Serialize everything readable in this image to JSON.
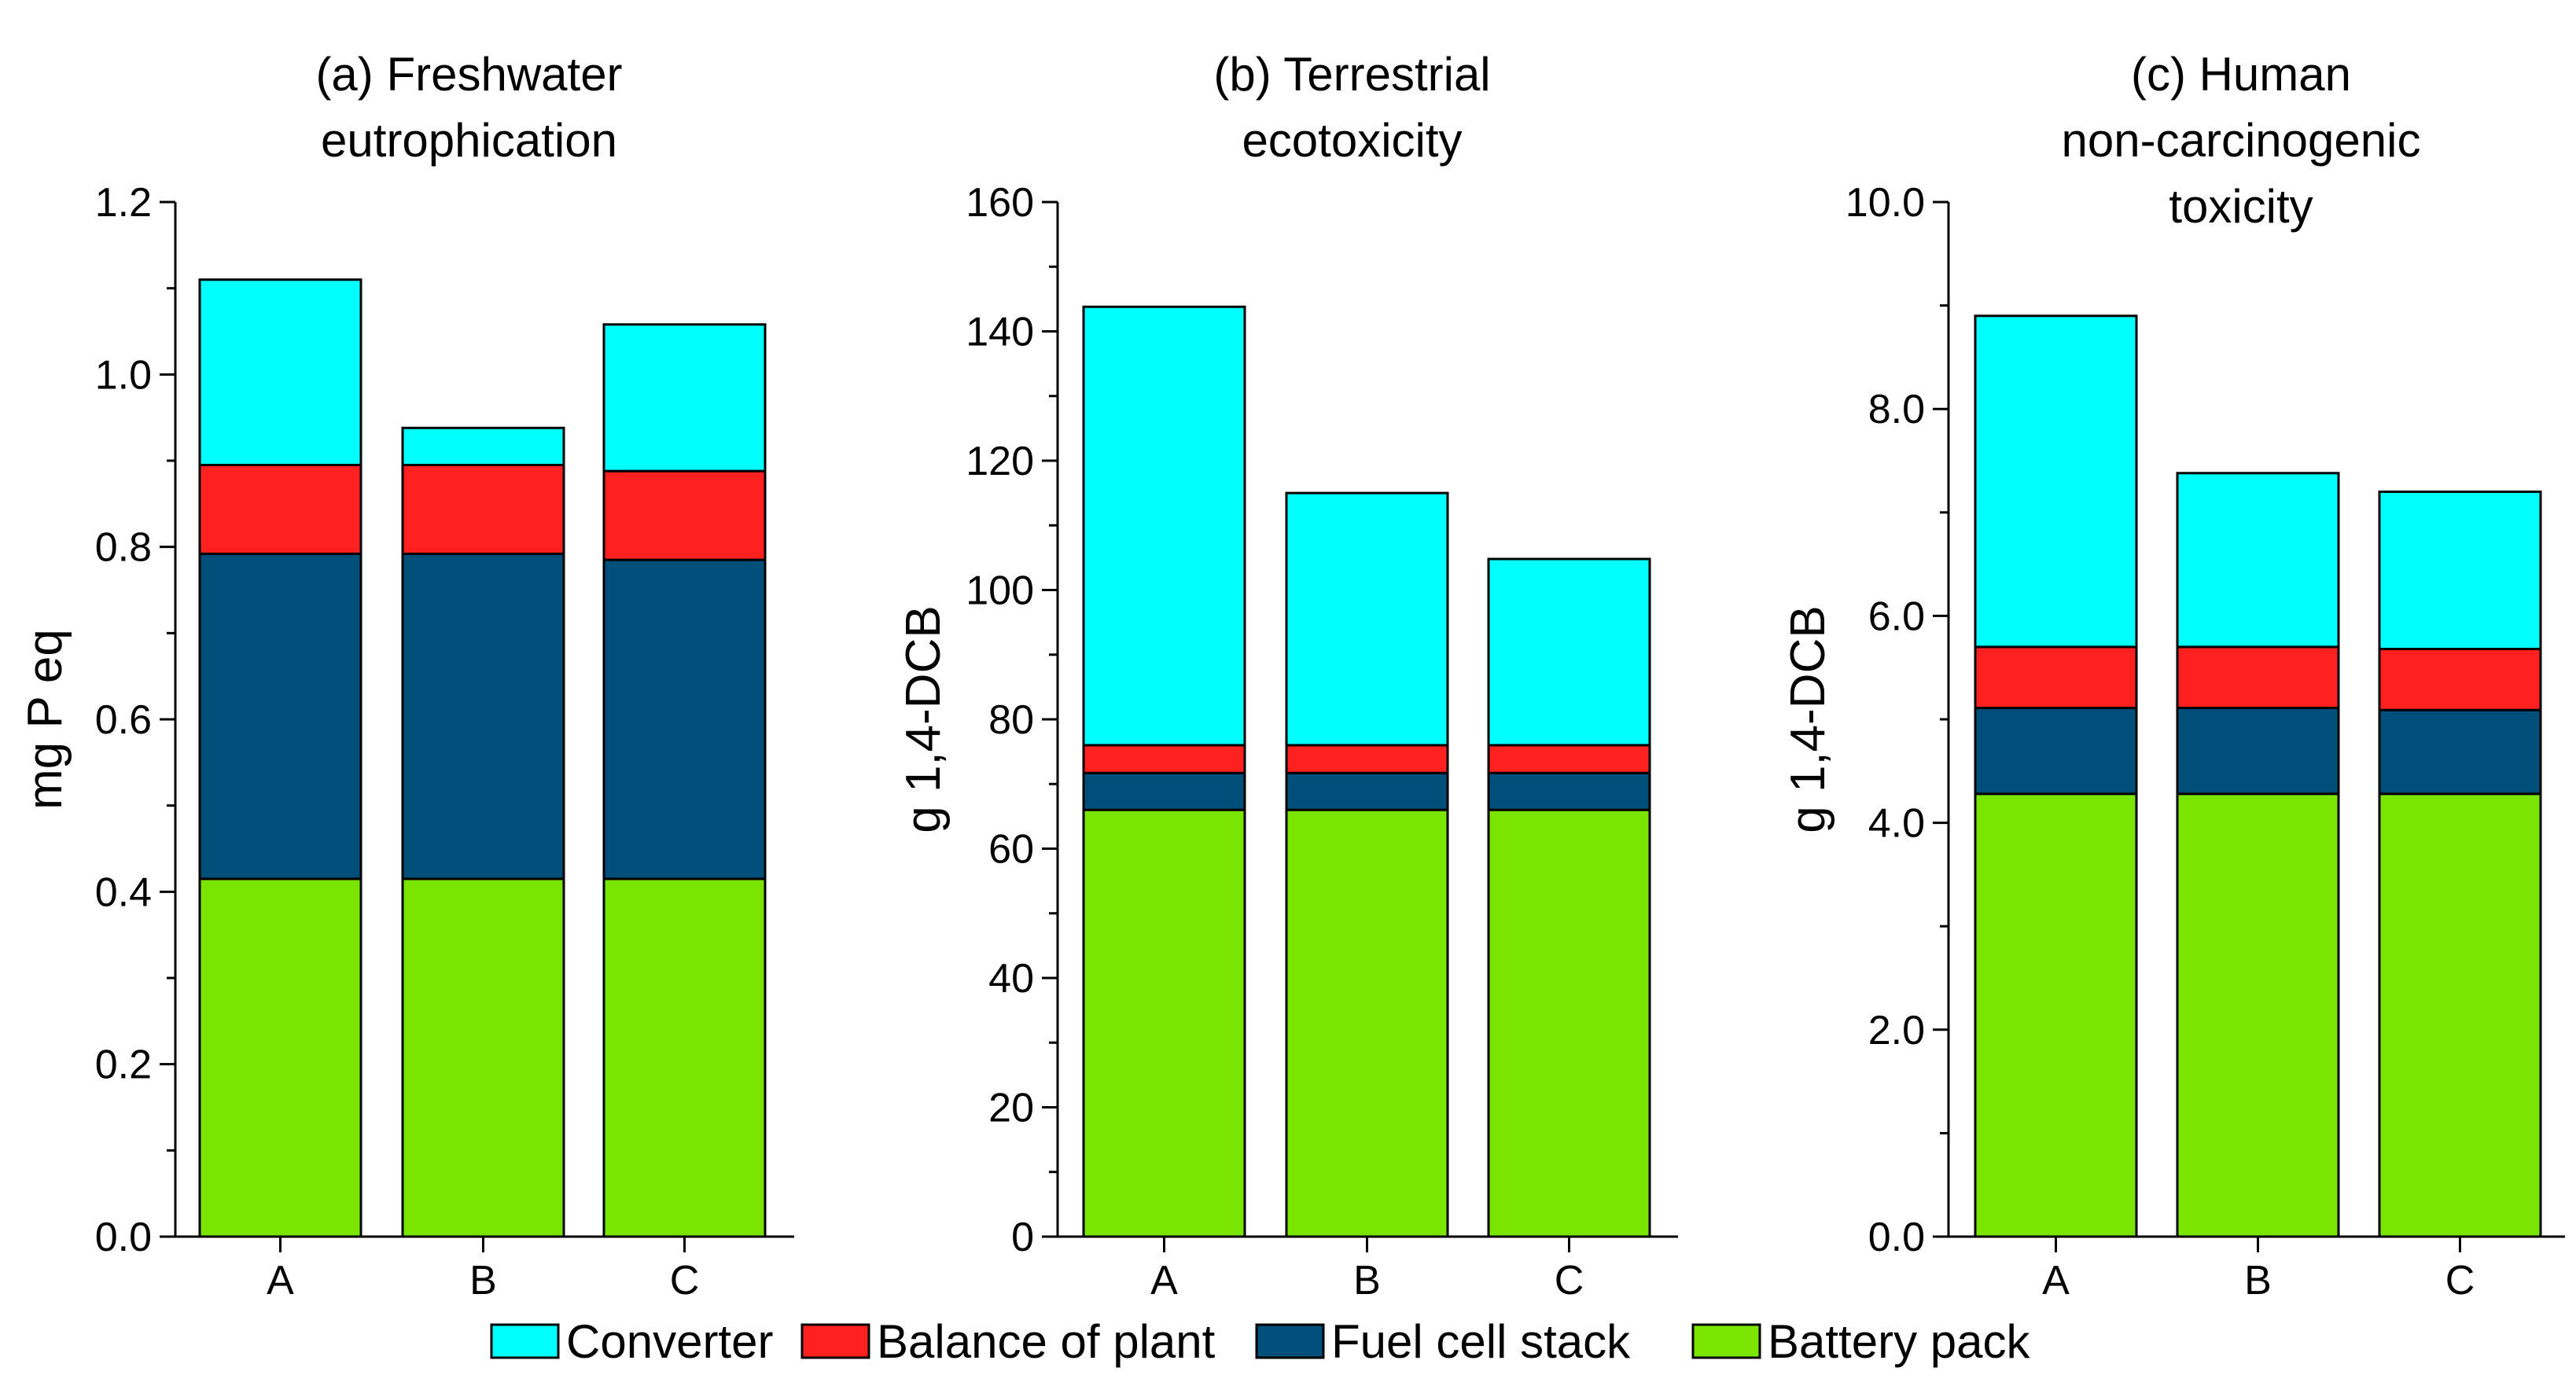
{
  "legend": [
    {
      "name": "Converter",
      "color": "#00FFFF"
    },
    {
      "name": "Balance of plant",
      "color": "#FF2020"
    },
    {
      "name": "Fuel cell stack",
      "color": "#004F7A"
    },
    {
      "name": "Battery pack",
      "color": "#7AE600"
    }
  ],
  "chart_data": [
    {
      "type": "bar",
      "stacked": true,
      "title": [
        "(a) Freshwater",
        "eutrophication"
      ],
      "ylabel": "mg P eq",
      "xlabel": "",
      "categories": [
        "A",
        "B",
        "C"
      ],
      "ylim": [
        0,
        1.2
      ],
      "ytick_step": 0.2,
      "ytick_labels": [
        "0.0",
        "0.2",
        "0.4",
        "0.6",
        "0.8",
        "1.0",
        "1.2"
      ],
      "series": [
        {
          "name": "Battery pack",
          "values": [
            0.415,
            0.415,
            0.415
          ]
        },
        {
          "name": "Fuel cell stack",
          "values": [
            0.377,
            0.377,
            0.37
          ]
        },
        {
          "name": "Balance of plant",
          "values": [
            0.103,
            0.103,
            0.103
          ]
        },
        {
          "name": "Converter",
          "values": [
            0.215,
            0.043,
            0.17
          ]
        }
      ]
    },
    {
      "type": "bar",
      "stacked": true,
      "title": [
        "(b) Terrestrial",
        "ecotoxicity"
      ],
      "ylabel": "g 1,4-DCB",
      "xlabel": "",
      "categories": [
        "A",
        "B",
        "C"
      ],
      "ylim": [
        0,
        160
      ],
      "ytick_step": 20,
      "ytick_labels": [
        "0",
        "20",
        "40",
        "60",
        "80",
        "100",
        "120",
        "140",
        "160"
      ],
      "series": [
        {
          "name": "Battery pack",
          "values": [
            66,
            66,
            66
          ]
        },
        {
          "name": "Fuel cell stack",
          "values": [
            5.7,
            5.7,
            5.7
          ]
        },
        {
          "name": "Balance of plant",
          "values": [
            4.3,
            4.3,
            4.3
          ]
        },
        {
          "name": "Converter",
          "values": [
            67.8,
            39.0,
            28.8
          ]
        }
      ]
    },
    {
      "type": "bar",
      "stacked": true,
      "title": [
        "(c) Human",
        "non-carcinogenic",
        "toxicity"
      ],
      "ylabel": "g 1,4-DCB",
      "xlabel": "",
      "categories": [
        "A",
        "B",
        "C"
      ],
      "ylim": [
        0,
        10
      ],
      "ytick_step": 2,
      "ytick_labels": [
        "0.0",
        "2.0",
        "4.0",
        "6.0",
        "8.0",
        "10.0"
      ],
      "series": [
        {
          "name": "Battery pack",
          "values": [
            4.28,
            4.28,
            4.28
          ]
        },
        {
          "name": "Fuel cell stack",
          "values": [
            0.83,
            0.83,
            0.81
          ]
        },
        {
          "name": "Balance of plant",
          "values": [
            0.59,
            0.59,
            0.59
          ]
        },
        {
          "name": "Converter",
          "values": [
            3.2,
            1.68,
            1.52
          ]
        }
      ]
    }
  ]
}
